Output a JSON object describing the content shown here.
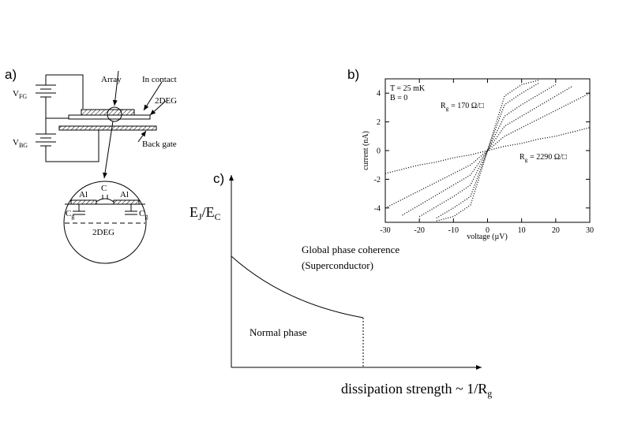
{
  "panel_a": {
    "label": "a)",
    "vfg": {
      "symbol": "V",
      "subscript": "FG"
    },
    "vbg": {
      "symbol": "V",
      "subscript": "BG"
    },
    "array": "Array",
    "in_contact": "In contact",
    "two_deg": "2DEG",
    "back_gate": "Back gate",
    "inset": {
      "al_left": "Al",
      "c": "C",
      "al_right": "Al",
      "cg_left": {
        "symbol": "C",
        "subscript": "g"
      },
      "cg_right": {
        "symbol": "C",
        "subscript": "g"
      },
      "two_deg": "2DEG"
    }
  },
  "chart_data": {
    "type": "line",
    "panel_label": "b)",
    "x_label": "voltage (µV)",
    "y_label": "current (nA)",
    "annotations": [
      "T = 25 mK",
      "B = 0"
    ],
    "curve_labels": [
      {
        "symbol": "R",
        "subscript": "g",
        "text": "= 170 Ω/□"
      },
      {
        "symbol": "R",
        "subscript": "g",
        "text": "= 2290 Ω/□"
      }
    ],
    "x": [
      -30,
      -25,
      -20,
      -15,
      -10,
      -5,
      0,
      5,
      10,
      15,
      20,
      25,
      30
    ],
    "xlim": [
      -30,
      30
    ],
    "xticks": [
      -30,
      -20,
      -10,
      0,
      10,
      20,
      30
    ],
    "ylim": [
      -5,
      5
    ],
    "yticks": [
      -4,
      -2,
      0,
      2,
      4
    ],
    "series": [
      {
        "color": "#000000",
        "values": [
          null,
          null,
          null,
          -4.9,
          -4.6,
          -3.8,
          0,
          3.8,
          4.6,
          4.9,
          null,
          null,
          null
        ]
      },
      {
        "color": "#000000",
        "values": [
          null,
          null,
          null,
          -4.7,
          -4.0,
          -3.2,
          0,
          3.2,
          4.0,
          4.7,
          null,
          null,
          null
        ]
      },
      {
        "color": "#000000",
        "values": [
          null,
          null,
          -4.6,
          -3.9,
          -3.2,
          -2.4,
          0,
          2.4,
          3.2,
          3.9,
          4.6,
          null,
          null
        ]
      },
      {
        "color": "#000000",
        "values": [
          null,
          -4.5,
          -3.8,
          -3.1,
          -2.4,
          -1.7,
          0,
          1.7,
          2.4,
          3.1,
          3.8,
          4.5,
          null
        ]
      },
      {
        "color": "#000000",
        "values": [
          -4.0,
          -3.4,
          -2.8,
          -2.2,
          -1.6,
          -1.0,
          0,
          1.0,
          1.6,
          2.2,
          2.8,
          3.4,
          4.0
        ]
      },
      {
        "color": "#000000",
        "values": [
          -1.6,
          -1.3,
          -1.0,
          -0.8,
          -0.5,
          -0.3,
          0,
          0.3,
          0.5,
          0.8,
          1.0,
          1.3,
          1.6
        ]
      }
    ]
  },
  "panel_c": {
    "label": "c)",
    "y_axis": {
      "symbol": "E",
      "sub1": "J",
      "slash": "/E",
      "sub2": "C"
    },
    "superconductor": "Global phase coherence",
    "superconductor_note": "(Superconductor)",
    "normal": "Normal phase",
    "x_axis": {
      "symbol": "dissipation strength ~ 1/R",
      "subscript": "g"
    }
  }
}
